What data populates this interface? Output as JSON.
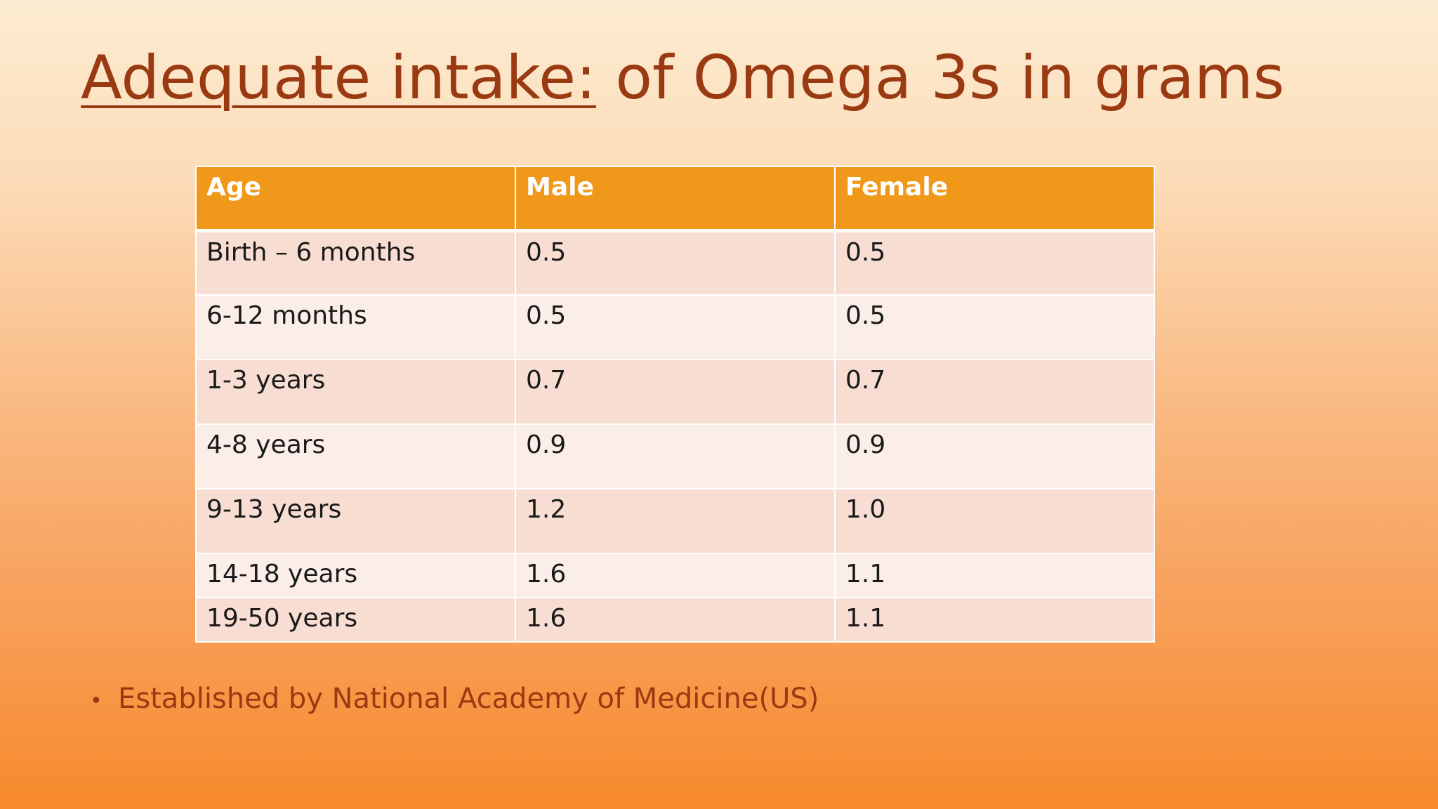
{
  "slide": {
    "title_underlined": "Adequate intake:",
    "title_rest": " of Omega 3s in grams"
  },
  "table": {
    "headers": [
      "Age",
      "Male",
      "Female"
    ],
    "rows": [
      [
        "Birth – 6 months",
        "0.5",
        "0.5"
      ],
      [
        "6-12 months",
        "0.5",
        "0.5"
      ],
      [
        "1-3 years",
        "0.7",
        "0.7"
      ],
      [
        "4-8 years",
        "0.9",
        "0.9"
      ],
      [
        "9-13 years",
        "1.2",
        "1.0"
      ],
      [
        "14-18 years",
        "1.6",
        "1.1"
      ],
      [
        "19-50 years",
        "1.6",
        "1.1"
      ]
    ]
  },
  "bullets": [
    "Established by National Academy of Medicine(US)"
  ],
  "colors": {
    "title": "#9a3a13",
    "header_bg": "#f0981a",
    "row_odd": "#f8ddd2",
    "row_even": "#fbeee8"
  }
}
